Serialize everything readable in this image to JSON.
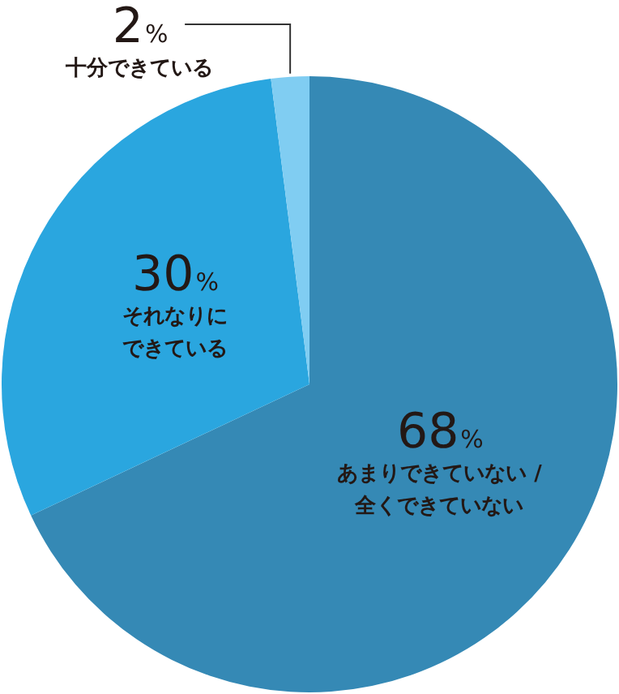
{
  "chart_data": {
    "type": "pie",
    "categories": [
      "あまりできていない / 全くできていない",
      "それなりにできている",
      "十分できている"
    ],
    "values": [
      68,
      30,
      2
    ],
    "colors": [
      "#3589b5",
      "#2aa6df",
      "#80cdf2"
    ],
    "value_labels": [
      "68%",
      "30%",
      "2%"
    ],
    "legend": false
  }
}
